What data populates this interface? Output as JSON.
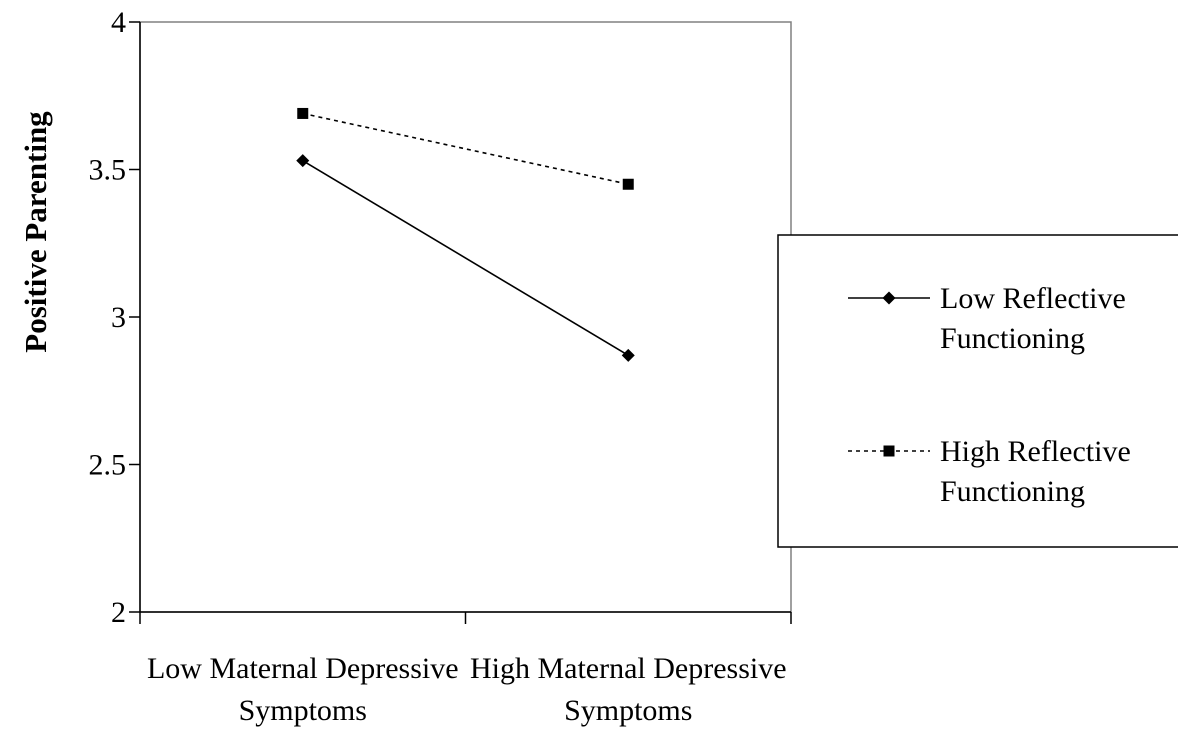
{
  "chart_data": {
    "type": "line",
    "title": "",
    "xlabel": "",
    "ylabel": "Positive Parenting",
    "categories": [
      [
        "Low Maternal Depressive",
        "Symptoms"
      ],
      [
        "High Maternal Depressive",
        "Symptoms"
      ]
    ],
    "y_ticks": [
      "2",
      "2.5",
      "3",
      "3.5",
      "4"
    ],
    "ylim": [
      2,
      4
    ],
    "grid": false,
    "legend_position": "right",
    "series": [
      {
        "name": [
          "Low Reflective",
          "Functioning"
        ],
        "values": [
          3.53,
          2.87
        ],
        "line_style": "solid",
        "marker": "diamond",
        "color": "#000000"
      },
      {
        "name": [
          "High Reflective",
          "Functioning"
        ],
        "values": [
          3.69,
          3.45
        ],
        "line_style": "dotted",
        "marker": "square",
        "color": "#000000"
      }
    ]
  }
}
